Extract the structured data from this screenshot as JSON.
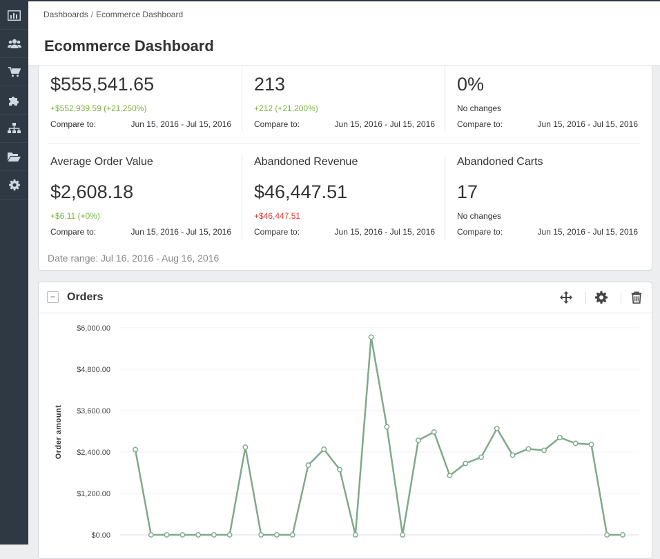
{
  "sidebar": {
    "items": [
      {
        "icon": "bar-chart-icon"
      },
      {
        "icon": "users-icon"
      },
      {
        "icon": "shopping-cart-icon"
      },
      {
        "icon": "puzzle-icon"
      },
      {
        "icon": "sitemap-icon"
      },
      {
        "icon": "folder-open-icon"
      },
      {
        "icon": "gear-icon"
      }
    ]
  },
  "breadcrumb": {
    "root": "Dashboards",
    "separator": "/",
    "current": "Ecommerce Dashboard"
  },
  "page": {
    "title": "Ecommerce Dashboard"
  },
  "metrics": {
    "row1": [
      {
        "name": "",
        "value": "$555,541.65",
        "change": "+$552,939.59 (+21,250%)",
        "change_color": "#7cb342",
        "compare_label": "Compare to:",
        "compare_range": "Jun 15, 2016 - Jul 15, 2016"
      },
      {
        "name": "",
        "value": "213",
        "change": "+212 (+21,200%)",
        "change_color": "#7cb342",
        "compare_label": "Compare to:",
        "compare_range": "Jun 15, 2016 - Jul 15, 2016"
      },
      {
        "name": "",
        "value": "0%",
        "change": "No changes",
        "change_color": "#333333",
        "compare_label": "Compare to:",
        "compare_range": "Jun 15, 2016 - Jul 15, 2016"
      }
    ],
    "row2": [
      {
        "name": "Average Order Value",
        "value": "$2,608.18",
        "change": "+$6.11 (+0%)",
        "change_color": "#7cb342",
        "compare_label": "Compare to:",
        "compare_range": "Jun 15, 2016 - Jul 15, 2016"
      },
      {
        "name": "Abandoned Revenue",
        "value": "$46,447.51",
        "change": "+$46,447.51",
        "change_color": "#e53935",
        "compare_label": "Compare to:",
        "compare_range": "Jun 15, 2016 - Jul 15, 2016"
      },
      {
        "name": "Abandoned Carts",
        "value": "17",
        "change": "No changes",
        "change_color": "#333333",
        "compare_label": "Compare to:",
        "compare_range": "Jun 15, 2016 - Jul 15, 2016"
      }
    ],
    "date_range": "Date range: Jul 16, 2016 - Aug 16, 2016"
  },
  "orders_widget": {
    "title": "Orders",
    "collapse_symbol": "−",
    "icons": [
      "move-icon",
      "gear-icon",
      "trash-icon"
    ]
  },
  "chart_data": {
    "type": "line",
    "ylabel": "Order amount",
    "xlabel": "",
    "ylim": [
      0,
      6000
    ],
    "y_ticks": [
      "$0.00",
      "$1,200.00",
      "$2,400.00",
      "$3,600.00",
      "$4,800.00",
      "$6,000.00"
    ],
    "y_tick_values": [
      0,
      1200,
      2400,
      3600,
      4800,
      6000
    ],
    "line_color": "#7fa98c",
    "series": [
      {
        "values": [
          2470,
          0,
          0,
          0,
          0,
          0,
          0,
          2540,
          0,
          0,
          0,
          2020,
          2480,
          1890,
          0,
          5730,
          3130,
          0,
          2740,
          2980,
          1720,
          2070,
          2250,
          3080,
          2310,
          2490,
          2450,
          2820,
          2650,
          2620,
          0,
          0
        ]
      }
    ]
  }
}
